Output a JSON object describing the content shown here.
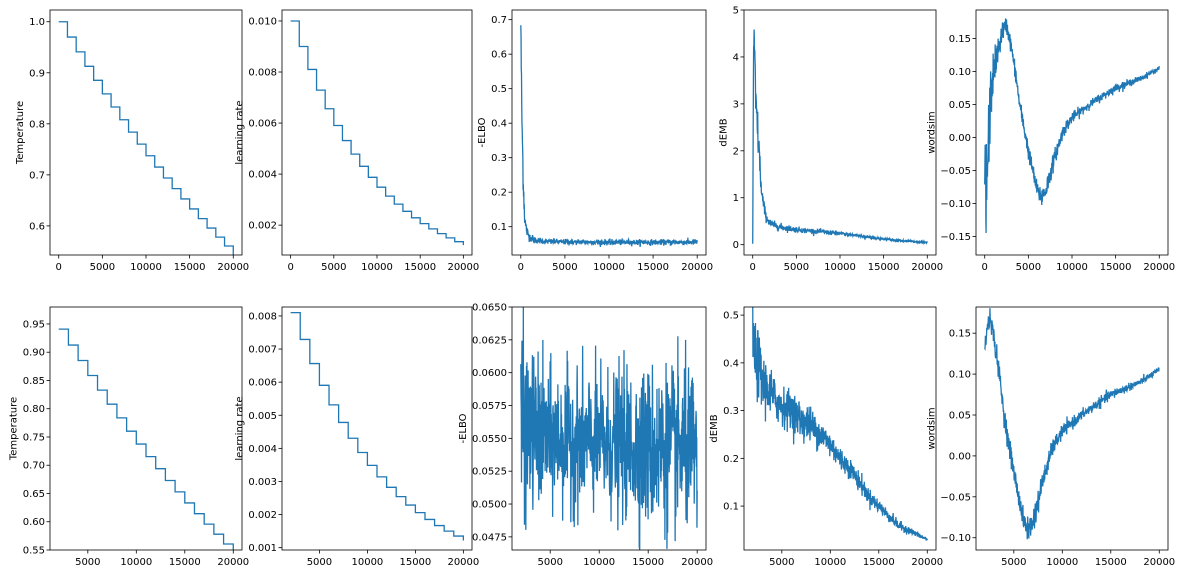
{
  "chart_data": [
    {
      "type": "line",
      "ylabel": "Temperature",
      "step": true,
      "xlim": [
        -1000,
        21000
      ],
      "ylim": [
        0.543,
        1.023
      ],
      "xticks": [
        0,
        5000,
        10000,
        15000,
        20000
      ],
      "xtick_labels": [
        "0",
        "5000",
        "10000",
        "15000",
        "20000"
      ],
      "yticks": [
        0.6,
        0.7,
        0.8,
        0.9,
        1.0
      ],
      "ytick_labels": [
        "0.6",
        "0.7",
        "0.8",
        "0.9",
        "1.0"
      ],
      "series": [
        {
          "color": "#1f77b4",
          "x_range": [
            0,
            20000
          ],
          "step_start": 1000,
          "step_every": 1000,
          "start_value": 1.0,
          "decay": 0.97
        }
      ]
    },
    {
      "type": "line",
      "ylabel": "learning rate",
      "step": true,
      "xlim": [
        -1000,
        21000
      ],
      "ylim": [
        0.00083,
        0.01043
      ],
      "xticks": [
        0,
        5000,
        10000,
        15000,
        20000
      ],
      "xtick_labels": [
        "0",
        "5000",
        "10000",
        "15000",
        "20000"
      ],
      "yticks": [
        0.002,
        0.004,
        0.006,
        0.008,
        0.01
      ],
      "ytick_labels": [
        "0.002",
        "0.004",
        "0.006",
        "0.008",
        "0.010"
      ],
      "series": [
        {
          "color": "#1f77b4",
          "x_range": [
            0,
            20000
          ],
          "step_start": 1000,
          "step_every": 1000,
          "start_value": 0.01,
          "decay": 0.9
        }
      ]
    },
    {
      "type": "line",
      "ylabel": "-ELBO",
      "noisy": true,
      "xlim": [
        -1000,
        21000
      ],
      "ylim": [
        0.018,
        0.728
      ],
      "xticks": [
        0,
        5000,
        10000,
        15000,
        20000
      ],
      "xtick_labels": [
        "0",
        "5000",
        "10000",
        "15000",
        "20000"
      ],
      "yticks": [
        0.1,
        0.2,
        0.3,
        0.4,
        0.5,
        0.6,
        0.7
      ],
      "ytick_labels": [
        "0.1",
        "0.2",
        "0.3",
        "0.4",
        "0.5",
        "0.6",
        "0.7"
      ],
      "series": [
        {
          "color": "#1f77b4",
          "x": [
            0,
            100,
            200,
            300,
            400,
            500,
            700,
            1000,
            1500,
            2000,
            3000,
            5000,
            10000,
            15000,
            20000
          ],
          "y": [
            0.69,
            0.45,
            0.32,
            0.22,
            0.15,
            0.11,
            0.085,
            0.07,
            0.062,
            0.059,
            0.057,
            0.056,
            0.055,
            0.055,
            0.055
          ],
          "noise": [
            0.02,
            0.03,
            0.03,
            0.025,
            0.02,
            0.012,
            0.008,
            0.006,
            0.005,
            0.004,
            0.004,
            0.004,
            0.004,
            0.004,
            0.004
          ]
        }
      ]
    },
    {
      "type": "line",
      "ylabel": "dEMB",
      "noisy": true,
      "xlim": [
        -1000,
        21000
      ],
      "ylim": [
        -0.22,
        5.0
      ],
      "xticks": [
        0,
        5000,
        10000,
        15000,
        20000
      ],
      "xtick_labels": [
        "0",
        "5000",
        "10000",
        "15000",
        "20000"
      ],
      "yticks": [
        0,
        1,
        2,
        3,
        4,
        5
      ],
      "ytick_labels": [
        "0",
        "1",
        "2",
        "3",
        "4",
        "5"
      ],
      "series": [
        {
          "color": "#1f77b4",
          "x": [
            0,
            100,
            200,
            300,
            500,
            800,
            1000,
            1500,
            2000,
            3000,
            5000,
            10000,
            15000,
            20000
          ],
          "y": [
            0.02,
            4.5,
            4.0,
            3.2,
            2.6,
            1.8,
            1.1,
            0.6,
            0.45,
            0.38,
            0.32,
            0.24,
            0.12,
            0.04
          ],
          "noise": [
            0.0,
            0.3,
            0.4,
            0.3,
            0.25,
            0.15,
            0.1,
            0.05,
            0.04,
            0.04,
            0.03,
            0.02,
            0.015,
            0.01
          ]
        }
      ]
    },
    {
      "type": "line",
      "ylabel": "wordsim",
      "noisy": true,
      "xlim": [
        -1000,
        21000
      ],
      "ylim": [
        -0.178,
        0.193
      ],
      "xticks": [
        0,
        5000,
        10000,
        15000,
        20000
      ],
      "xtick_labels": [
        "0",
        "5000",
        "10000",
        "15000",
        "20000"
      ],
      "yticks": [
        -0.15,
        -0.1,
        -0.05,
        0.0,
        0.05,
        0.1,
        0.15
      ],
      "ytick_labels": [
        "−0.15",
        "−0.10",
        "−0.05",
        "0.00",
        "0.05",
        "0.10",
        "0.15"
      ],
      "series": [
        {
          "color": "#1f77b4",
          "x": [
            0,
            100,
            300,
            500,
            800,
            1000,
            1500,
            2000,
            2500,
            3000,
            3500,
            4000,
            5000,
            6000,
            6500,
            7000,
            8000,
            9000,
            10000,
            12000,
            15000,
            18000,
            20000
          ],
          "y": [
            -0.02,
            -0.1,
            -0.05,
            0.02,
            0.08,
            0.1,
            0.13,
            0.16,
            0.17,
            0.14,
            0.1,
            0.05,
            -0.02,
            -0.08,
            -0.09,
            -0.08,
            -0.03,
            0.01,
            0.03,
            0.05,
            0.075,
            0.09,
            0.105
          ],
          "noise": [
            0.06,
            0.05,
            0.04,
            0.03,
            0.02,
            0.015,
            0.01,
            0.008,
            0.006,
            0.006,
            0.006,
            0.006,
            0.006,
            0.006,
            0.008,
            0.008,
            0.006,
            0.005,
            0.004,
            0.003,
            0.003,
            0.002,
            0.002
          ]
        }
      ]
    },
    {
      "type": "line",
      "ylabel": "Temperature",
      "step": true,
      "xlim": [
        1100,
        20900
      ],
      "ylim": [
        0.55,
        0.98
      ],
      "xticks": [
        5000,
        10000,
        15000,
        20000
      ],
      "xtick_labels": [
        "5000",
        "10000",
        "15000",
        "20000"
      ],
      "yticks": [
        0.55,
        0.6,
        0.65,
        0.7,
        0.75,
        0.8,
        0.85,
        0.9,
        0.95
      ],
      "ytick_labels": [
        "0.55",
        "0.60",
        "0.65",
        "0.70",
        "0.75",
        "0.80",
        "0.85",
        "0.90",
        "0.95"
      ],
      "series": [
        {
          "color": "#1f77b4",
          "x_range": [
            2000,
            20000
          ],
          "step_start": 1000,
          "step_every": 1000,
          "start_value": 1.0,
          "decay": 0.97
        }
      ]
    },
    {
      "type": "line",
      "ylabel": "learning rate",
      "step": true,
      "xlim": [
        1100,
        20900
      ],
      "ylim": [
        0.00093,
        0.00827
      ],
      "xticks": [
        5000,
        10000,
        15000,
        20000
      ],
      "xtick_labels": [
        "5000",
        "10000",
        "15000",
        "20000"
      ],
      "yticks": [
        0.001,
        0.002,
        0.003,
        0.004,
        0.005,
        0.006,
        0.007,
        0.008
      ],
      "ytick_labels": [
        "0.001",
        "0.002",
        "0.003",
        "0.004",
        "0.005",
        "0.006",
        "0.007",
        "0.008"
      ],
      "series": [
        {
          "color": "#1f77b4",
          "x_range": [
            2000,
            20000
          ],
          "step_start": 1000,
          "step_every": 1000,
          "start_value": 0.01,
          "decay": 0.9
        }
      ]
    },
    {
      "type": "line",
      "ylabel": "-ELBO",
      "noisy": true,
      "xlim": [
        1100,
        20900
      ],
      "ylim": [
        0.0465,
        0.065
      ],
      "xticks": [
        5000,
        10000,
        15000,
        20000
      ],
      "xtick_labels": [
        "5000",
        "10000",
        "15000",
        "20000"
      ],
      "yticks": [
        0.0475,
        0.05,
        0.0525,
        0.055,
        0.0575,
        0.06,
        0.0625,
        0.065
      ],
      "ytick_labels": [
        "0.0475",
        "0.0500",
        "0.0525",
        "0.0550",
        "0.0575",
        "0.0600",
        "0.0625",
        "0.0650"
      ],
      "series": [
        {
          "color": "#1f77b4",
          "x": [
            2000,
            3000,
            5000,
            8000,
            10000,
            13000,
            15000,
            18000,
            20000
          ],
          "y": [
            0.056,
            0.0555,
            0.055,
            0.0548,
            0.0546,
            0.0545,
            0.0543,
            0.0542,
            0.054
          ],
          "noise": [
            0.0035,
            0.003,
            0.0025,
            0.0025,
            0.0025,
            0.0028,
            0.003,
            0.003,
            0.003
          ]
        }
      ]
    },
    {
      "type": "line",
      "ylabel": "dEMB",
      "noisy": true,
      "xlim": [
        1100,
        20900
      ],
      "ylim": [
        0.008,
        0.517
      ],
      "xticks": [
        5000,
        10000,
        15000,
        20000
      ],
      "xtick_labels": [
        "5000",
        "10000",
        "15000",
        "20000"
      ],
      "yticks": [
        0.1,
        0.2,
        0.3,
        0.4,
        0.5
      ],
      "ytick_labels": [
        "0.1",
        "0.2",
        "0.3",
        "0.4",
        "0.5"
      ],
      "series": [
        {
          "color": "#1f77b4",
          "x": [
            2000,
            2500,
            3000,
            4000,
            5000,
            6000,
            7000,
            8000,
            9000,
            10000,
            11000,
            12000,
            13000,
            14000,
            15000,
            16000,
            17000,
            18000,
            19000,
            20000
          ],
          "y": [
            0.43,
            0.4,
            0.36,
            0.33,
            0.31,
            0.3,
            0.28,
            0.27,
            0.25,
            0.23,
            0.2,
            0.18,
            0.15,
            0.12,
            0.1,
            0.08,
            0.06,
            0.05,
            0.04,
            0.03
          ],
          "noise": [
            0.04,
            0.035,
            0.03,
            0.025,
            0.02,
            0.02,
            0.02,
            0.018,
            0.016,
            0.014,
            0.012,
            0.01,
            0.01,
            0.008,
            0.007,
            0.006,
            0.005,
            0.004,
            0.003,
            0.002
          ]
        }
      ]
    },
    {
      "type": "line",
      "ylabel": "wordsim",
      "noisy": true,
      "xlim": [
        1100,
        20900
      ],
      "ylim": [
        -0.115,
        0.182
      ],
      "xticks": [
        5000,
        10000,
        15000,
        20000
      ],
      "xtick_labels": [
        "5000",
        "10000",
        "15000",
        "20000"
      ],
      "yticks": [
        -0.1,
        -0.05,
        0.0,
        0.05,
        0.1,
        0.15
      ],
      "ytick_labels": [
        "−0.10",
        "−0.05",
        "0.00",
        "0.05",
        "0.10",
        "0.15"
      ],
      "series": [
        {
          "color": "#1f77b4",
          "x": [
            2000,
            2300,
            2600,
            3000,
            3500,
            4000,
            5000,
            5500,
            6000,
            6500,
            7000,
            8000,
            9000,
            10000,
            12000,
            15000,
            18000,
            20000
          ],
          "y": [
            0.13,
            0.16,
            0.17,
            0.14,
            0.1,
            0.05,
            -0.02,
            -0.05,
            -0.08,
            -0.09,
            -0.08,
            -0.03,
            0.01,
            0.03,
            0.05,
            0.075,
            0.09,
            0.105
          ],
          "noise": [
            0.008,
            0.006,
            0.006,
            0.006,
            0.006,
            0.006,
            0.006,
            0.006,
            0.006,
            0.008,
            0.008,
            0.006,
            0.005,
            0.004,
            0.003,
            0.003,
            0.002,
            0.002
          ]
        }
      ]
    }
  ]
}
